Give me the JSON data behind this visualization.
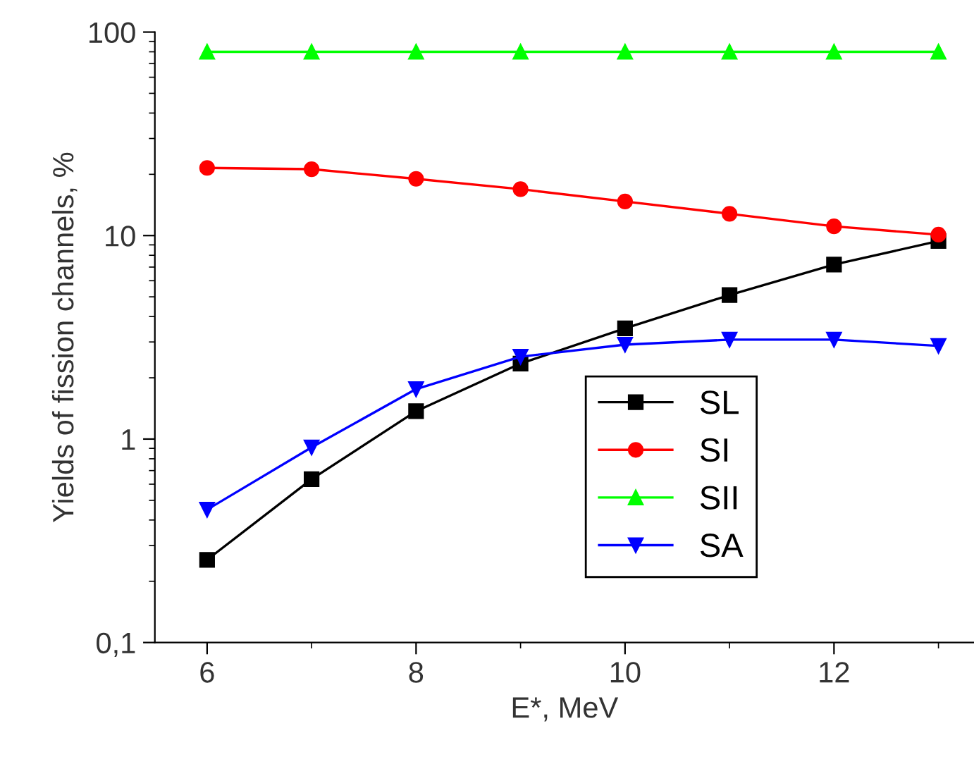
{
  "chart_data": {
    "type": "line",
    "xlabel": "E*, MeV",
    "ylabel": "Yields of fission channels, %",
    "x": [
      6,
      7,
      8,
      9,
      10,
      11,
      12,
      13
    ],
    "series": [
      {
        "name": "SL",
        "color": "#000000",
        "marker": "square",
        "values": [
          0.255,
          0.635,
          1.37,
          2.35,
          3.5,
          5.1,
          7.2,
          9.4
        ]
      },
      {
        "name": "SI",
        "color": "#ff0000",
        "marker": "circle",
        "values": [
          21.5,
          21.2,
          19,
          16.9,
          14.7,
          12.8,
          11.1,
          10.1
        ]
      },
      {
        "name": "SII",
        "color": "#00ff00",
        "marker": "triangle",
        "values": [
          80,
          80,
          80,
          80,
          80,
          80,
          80,
          80
        ]
      },
      {
        "name": "SA",
        "color": "#0000ff",
        "marker": "triangle_down",
        "values": [
          0.45,
          0.91,
          1.76,
          2.54,
          2.91,
          3.08,
          3.08,
          2.87
        ]
      }
    ],
    "log": "y",
    "xlim": [
      5.5,
      13.34
    ],
    "ylim": [
      0.1,
      100
    ],
    "xticks": [
      6,
      8,
      10,
      12
    ],
    "yticks": [
      {
        "value": 0.1,
        "label": "0,1"
      },
      1,
      10,
      100
    ],
    "grid": false,
    "legend": "bottom right",
    "line_style": "solid"
  }
}
